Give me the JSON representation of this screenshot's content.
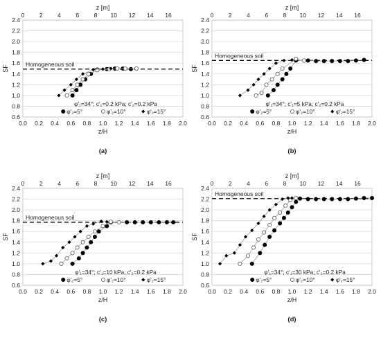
{
  "chart_data": [
    {
      "type": "scatter",
      "panel_label": "(a)",
      "xlabel": "z/H",
      "x2label": "z",
      "x2unit": "[m]",
      "ylabel": "SF",
      "xlim": [
        0,
        2
      ],
      "x2lim": [
        0,
        17.6
      ],
      "ylim": [
        0.6,
        2.4
      ],
      "x_ticks": [
        "0.0",
        "0.2",
        "0.4",
        "0.6",
        "0.8",
        "1.0",
        "1.2",
        "1.4",
        "1.6",
        "1.8",
        "2.0"
      ],
      "x2_ticks": [
        "0",
        "2",
        "4",
        "6",
        "8",
        "10",
        "12",
        "14",
        "16"
      ],
      "y_ticks": [
        "0.6",
        "0.8",
        "1.0",
        "1.2",
        "1.4",
        "1.6",
        "1.8",
        "2.0",
        "2.2",
        "2.4"
      ],
      "grid": "horizontal",
      "reference": {
        "label": "Homogeneous soil",
        "value": 1.49
      },
      "params_label": "φ'₁=34°; c'₁=0.2 kPa; c'₂=0.2 kPa",
      "series": [
        {
          "name": "φ'₂=5°",
          "marker": "filled-circle",
          "points": [
            [
              0.62,
              1.0
            ],
            [
              0.67,
              1.1
            ],
            [
              0.72,
              1.2
            ],
            [
              0.78,
              1.3
            ],
            [
              0.85,
              1.4
            ],
            [
              0.93,
              1.48
            ],
            [
              1.05,
              1.49
            ],
            [
              1.15,
              1.5
            ],
            [
              1.25,
              1.5
            ],
            [
              1.35,
              1.49
            ]
          ]
        },
        {
          "name": "φ'₂=10°",
          "marker": "open-circle",
          "points": [
            [
              0.55,
              1.0
            ],
            [
              0.62,
              1.1
            ],
            [
              0.68,
              1.2
            ],
            [
              0.75,
              1.3
            ],
            [
              0.82,
              1.4
            ],
            [
              0.93,
              1.47
            ],
            [
              1.08,
              1.49
            ],
            [
              1.18,
              1.5
            ],
            [
              1.28,
              1.5
            ],
            [
              1.42,
              1.5
            ]
          ]
        },
        {
          "name": "φ'₂=15°",
          "marker": "filled-diamond",
          "points": [
            [
              0.45,
              1.0
            ],
            [
              0.52,
              1.1
            ],
            [
              0.6,
              1.2
            ],
            [
              0.67,
              1.3
            ],
            [
              0.75,
              1.4
            ],
            [
              0.88,
              1.48
            ],
            [
              1.0,
              1.49
            ],
            [
              1.1,
              1.5
            ]
          ]
        }
      ]
    },
    {
      "type": "scatter",
      "panel_label": "(b)",
      "xlabel": "z/H",
      "x2label": "z",
      "x2unit": "[m]",
      "ylabel": "SF",
      "xlim": [
        0,
        2
      ],
      "x2lim": [
        0,
        17.6
      ],
      "ylim": [
        0.6,
        2.4
      ],
      "x_ticks": [
        "0.0",
        "0.2",
        "0.4",
        "0.6",
        "0.8",
        "1.0",
        "1.2",
        "1.4",
        "1.6",
        "1.8",
        "2.0"
      ],
      "x2_ticks": [
        "0",
        "2",
        "4",
        "6",
        "8",
        "10",
        "12",
        "14",
        "16"
      ],
      "y_ticks": [
        "0.6",
        "0.8",
        "1.0",
        "1.2",
        "1.4",
        "1.6",
        "1.8",
        "2.0",
        "2.2",
        "2.4"
      ],
      "grid": "horizontal",
      "reference": {
        "label": "Homogeneous soil",
        "value": 1.65
      },
      "params_label": "φ'₁=34°; c'₁=5 kPa; c'₂=0.2 kPa",
      "series": [
        {
          "name": "φ'₂=5°",
          "marker": "filled-circle",
          "points": [
            [
              0.7,
              1.0
            ],
            [
              0.77,
              1.1
            ],
            [
              0.82,
              1.2
            ],
            [
              0.88,
              1.3
            ],
            [
              0.93,
              1.4
            ],
            [
              0.98,
              1.5
            ],
            [
              1.05,
              1.65
            ],
            [
              1.2,
              1.65
            ],
            [
              1.3,
              1.64
            ],
            [
              1.4,
              1.64
            ],
            [
              1.5,
              1.64
            ],
            [
              1.6,
              1.64
            ],
            [
              1.7,
              1.64
            ],
            [
              1.8,
              1.65
            ],
            [
              1.9,
              1.66
            ]
          ]
        },
        {
          "name": "φ'₂=10°",
          "marker": "open-circle",
          "points": [
            [
              0.55,
              1.0
            ],
            [
              0.62,
              1.05
            ],
            [
              0.68,
              1.2
            ],
            [
              0.75,
              1.3
            ],
            [
              0.82,
              1.4
            ],
            [
              0.88,
              1.5
            ],
            [
              1.05,
              1.68
            ],
            [
              1.15,
              1.65
            ]
          ]
        },
        {
          "name": "φ'₂=15°",
          "marker": "filled-diamond",
          "points": [
            [
              0.35,
              1.0
            ],
            [
              0.45,
              1.1
            ],
            [
              0.52,
              1.2
            ],
            [
              0.58,
              1.3
            ],
            [
              0.65,
              1.4
            ],
            [
              0.72,
              1.5
            ],
            [
              0.8,
              1.6
            ],
            [
              0.9,
              1.65
            ],
            [
              1.0,
              1.66
            ]
          ]
        }
      ]
    },
    {
      "type": "scatter",
      "panel_label": "(c)",
      "xlabel": "z/H",
      "x2label": "z",
      "x2unit": "[m]",
      "ylabel": "SF",
      "xlim": [
        0,
        2
      ],
      "x2lim": [
        0,
        17.6
      ],
      "ylim": [
        0.6,
        2.4
      ],
      "x_ticks": [
        "0.0",
        "0.2",
        "0.4",
        "0.6",
        "0.8",
        "1.0",
        "1.2",
        "1.4",
        "1.6",
        "1.8",
        "2.0"
      ],
      "x2_ticks": [
        "0",
        "2",
        "4",
        "6",
        "8",
        "10",
        "12",
        "14",
        "16"
      ],
      "y_ticks": [
        "0.6",
        "0.8",
        "1.0",
        "1.2",
        "1.4",
        "1.6",
        "1.8",
        "2.0",
        "2.2",
        "2.4"
      ],
      "grid": "horizontal",
      "reference": {
        "label": "Homogeneous soil",
        "value": 1.77
      },
      "params_label": "φ'₁=34°; c'₁=10 kPa; c'₂=0.2 kPa",
      "series": [
        {
          "name": "φ'₂=5°",
          "marker": "filled-circle",
          "points": [
            [
              0.62,
              1.0
            ],
            [
              0.7,
              1.1
            ],
            [
              0.75,
              1.2
            ],
            [
              0.8,
              1.3
            ],
            [
              0.85,
              1.4
            ],
            [
              0.9,
              1.5
            ],
            [
              0.95,
              1.6
            ],
            [
              1.05,
              1.7
            ],
            [
              1.1,
              1.77
            ],
            [
              1.3,
              1.77
            ],
            [
              1.4,
              1.77
            ],
            [
              1.5,
              1.77
            ],
            [
              1.6,
              1.77
            ],
            [
              1.7,
              1.77
            ],
            [
              1.8,
              1.77
            ],
            [
              1.88,
              1.77
            ]
          ]
        },
        {
          "name": "φ'₂=10°",
          "marker": "open-circle",
          "points": [
            [
              0.48,
              1.0
            ],
            [
              0.55,
              1.1
            ],
            [
              0.62,
              1.2
            ],
            [
              0.68,
              1.3
            ],
            [
              0.75,
              1.4
            ],
            [
              0.82,
              1.5
            ],
            [
              0.9,
              1.6
            ],
            [
              1.0,
              1.7
            ],
            [
              1.1,
              1.78
            ],
            [
              1.2,
              1.77
            ]
          ]
        },
        {
          "name": "φ'₂=15°",
          "marker": "filled-diamond",
          "points": [
            [
              0.25,
              1.0
            ],
            [
              0.35,
              1.05
            ],
            [
              0.42,
              1.15
            ],
            [
              0.5,
              1.3
            ],
            [
              0.58,
              1.4
            ],
            [
              0.65,
              1.5
            ],
            [
              0.72,
              1.6
            ],
            [
              0.8,
              1.7
            ],
            [
              0.88,
              1.74
            ],
            [
              0.98,
              1.79
            ],
            [
              1.05,
              1.78
            ]
          ]
        }
      ]
    },
    {
      "type": "scatter",
      "panel_label": "(d)",
      "xlabel": "z/H",
      "x2label": "z",
      "x2unit": "[m]",
      "ylabel": "SF",
      "xlim": [
        0,
        2
      ],
      "x2lim": [
        0,
        17.6
      ],
      "ylim": [
        0.6,
        2.4
      ],
      "x_ticks": [
        "0.0",
        "0.2",
        "0.4",
        "0.6",
        "0.8",
        "1.0",
        "1.2",
        "1.4",
        "1.6",
        "1.8",
        "2.0"
      ],
      "x2_ticks": [
        "0",
        "2",
        "4",
        "6",
        "8",
        "10",
        "12",
        "14",
        "16"
      ],
      "y_ticks": [
        "0.6",
        "0.8",
        "1.0",
        "1.2",
        "1.4",
        "1.6",
        "1.8",
        "2.0",
        "2.2",
        "2.4"
      ],
      "grid": "horizontal",
      "reference": {
        "label": "Homogeneous soil",
        "value": 2.21
      },
      "params_label": "φ'₁=34°; c'₁=30 kPa; c'₂=0.2 kPa",
      "series": [
        {
          "name": "φ'₂=5°",
          "marker": "filled-circle",
          "points": [
            [
              0.5,
              1.0
            ],
            [
              0.6,
              1.2
            ],
            [
              0.66,
              1.35
            ],
            [
              0.72,
              1.5
            ],
            [
              0.78,
              1.62
            ],
            [
              0.85,
              1.75
            ],
            [
              0.9,
              1.85
            ],
            [
              0.95,
              1.95
            ],
            [
              1.0,
              2.05
            ],
            [
              1.05,
              2.15
            ],
            [
              1.1,
              2.21
            ],
            [
              1.2,
              2.2
            ],
            [
              1.3,
              2.2
            ],
            [
              1.4,
              2.2
            ],
            [
              1.5,
              2.2
            ],
            [
              1.6,
              2.2
            ],
            [
              1.7,
              2.2
            ],
            [
              1.8,
              2.21
            ],
            [
              1.9,
              2.22
            ],
            [
              2.0,
              2.22
            ]
          ]
        },
        {
          "name": "φ'₂=10°",
          "marker": "open-circle",
          "points": [
            [
              0.35,
              1.0
            ],
            [
              0.45,
              1.15
            ],
            [
              0.52,
              1.3
            ],
            [
              0.58,
              1.45
            ],
            [
              0.65,
              1.58
            ],
            [
              0.72,
              1.72
            ],
            [
              0.78,
              1.85
            ],
            [
              0.85,
              1.95
            ],
            [
              0.92,
              2.08
            ],
            [
              0.98,
              2.18
            ],
            [
              1.05,
              2.22
            ]
          ]
        },
        {
          "name": "φ'₂=15°",
          "marker": "filled-diamond",
          "points": [
            [
              0.1,
              1.0
            ],
            [
              0.18,
              1.15
            ],
            [
              0.28,
              1.2
            ],
            [
              0.35,
              1.35
            ],
            [
              0.42,
              1.5
            ],
            [
              0.5,
              1.62
            ],
            [
              0.58,
              1.75
            ],
            [
              0.65,
              1.88
            ],
            [
              0.72,
              2.0
            ],
            [
              0.8,
              2.1
            ],
            [
              0.88,
              2.2
            ],
            [
              0.95,
              2.22
            ],
            [
              1.0,
              2.22
            ]
          ]
        }
      ]
    }
  ]
}
